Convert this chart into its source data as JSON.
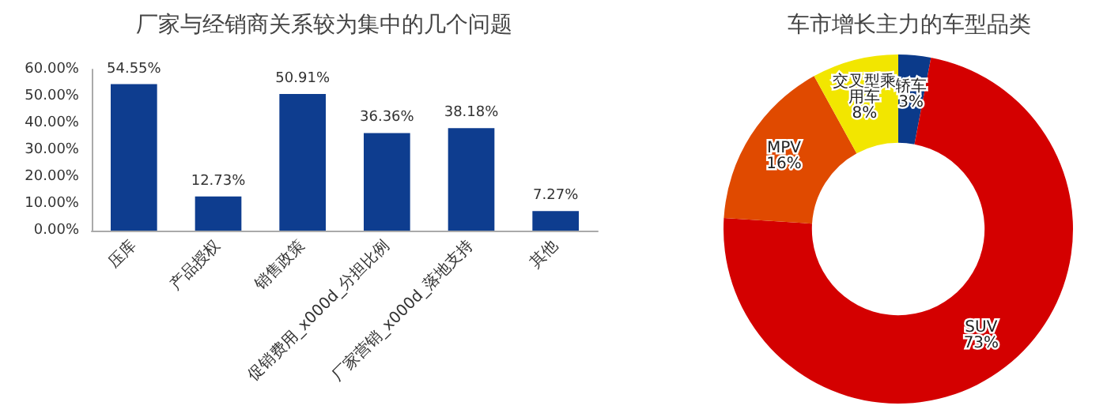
{
  "chart_data": [
    {
      "type": "bar",
      "title": "厂家与经销商关系较为集中的几个问题",
      "categories": [
        "压库",
        "产品授权",
        "销售政策",
        "促销费用_x000d_分担比例",
        "厂家营销_x000d_落地支持",
        "其他"
      ],
      "values": [
        54.55,
        12.73,
        50.91,
        36.36,
        38.18,
        7.27
      ],
      "value_labels": [
        "54.55%",
        "12.73%",
        "50.91%",
        "36.36%",
        "38.18%",
        "7.27%"
      ],
      "color": "#0e3d8f",
      "ylim": [
        0,
        60
      ],
      "yticks": [
        {
          "value": 0,
          "label": "0.00%"
        },
        {
          "value": 10,
          "label": "10.00%"
        },
        {
          "value": 20,
          "label": "20.00%"
        },
        {
          "value": 30,
          "label": "30.00%"
        },
        {
          "value": 40,
          "label": "40.00%"
        },
        {
          "value": 50,
          "label": "50.00%"
        },
        {
          "value": 60,
          "label": "60.00%"
        }
      ],
      "grid": false
    },
    {
      "type": "donut",
      "title": "车市增长主力的车型品类",
      "categories": [
        "轿车",
        "SUV",
        "MPV",
        "交叉型乘用车"
      ],
      "values": [
        3,
        73,
        16,
        8
      ],
      "colors": [
        "#0b3a8a",
        "#d40000",
        "#e04a00",
        "#f2e600"
      ],
      "value_labels": [
        "3%",
        "73%",
        "16%",
        "8%"
      ]
    }
  ]
}
